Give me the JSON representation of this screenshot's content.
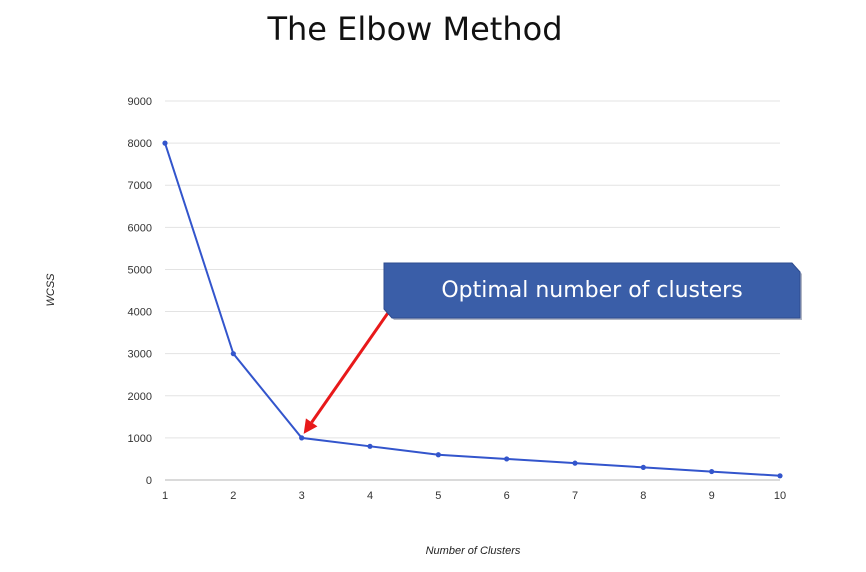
{
  "title": "The Elbow Method",
  "chart_data": {
    "type": "line",
    "x": [
      1,
      2,
      3,
      4,
      5,
      6,
      7,
      8,
      9,
      10
    ],
    "series": [
      {
        "values": [
          8000,
          3000,
          1000,
          800,
          600,
          500,
          400,
          300,
          200,
          100
        ]
      }
    ],
    "xlabel": "Number of Clusters",
    "ylabel": "WCSS",
    "xlim": [
      1,
      10
    ],
    "ylim": [
      0,
      9000
    ],
    "yticks": [
      0,
      1000,
      2000,
      3000,
      4000,
      5000,
      6000,
      7000,
      8000,
      9000
    ],
    "xticks": [
      1,
      2,
      3,
      4,
      5,
      6,
      7,
      8,
      9,
      10
    ],
    "grid": true,
    "line_color": "#3355cc",
    "annotation": {
      "text": "Optimal number of clusters",
      "points_to_x": 3,
      "box_color": "#3a5ea8",
      "arrow_color": "#e8191a"
    }
  }
}
